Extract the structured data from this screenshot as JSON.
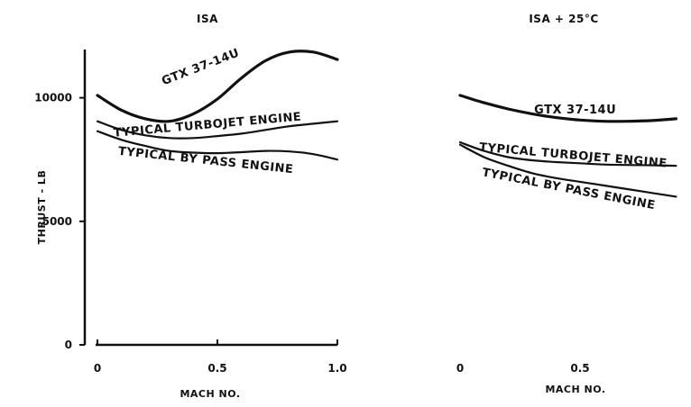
{
  "chart_data": [
    {
      "type": "line",
      "title": "ISA",
      "xlabel": "MACH NO.",
      "ylabel": "THRUST - LB",
      "xlim": [
        0,
        1.0
      ],
      "ylim": [
        0,
        12300
      ],
      "xticks": [
        "0",
        "0.5",
        "1.0"
      ],
      "yticks": [
        "0",
        "5000",
        "10000"
      ],
      "series": [
        {
          "name": "GTX 37-14U",
          "x": [
            0,
            0.1,
            0.2,
            0.3,
            0.4,
            0.5,
            0.6,
            0.7,
            0.8,
            0.9,
            1.0
          ],
          "values": [
            10100,
            9500,
            9150,
            9050,
            9350,
            9950,
            10800,
            11500,
            11850,
            11850,
            11550
          ]
        },
        {
          "name": "TYPICAL TURBOJET ENGINE",
          "x": [
            0,
            0.1,
            0.2,
            0.3,
            0.4,
            0.5,
            0.6,
            0.7,
            0.8,
            0.9,
            1.0
          ],
          "values": [
            9050,
            8700,
            8480,
            8370,
            8370,
            8450,
            8550,
            8700,
            8850,
            8950,
            9050
          ]
        },
        {
          "name": "TYPICAL BY PASS ENGINE",
          "x": [
            0,
            0.1,
            0.2,
            0.3,
            0.4,
            0.5,
            0.6,
            0.7,
            0.8,
            0.9,
            1.0
          ],
          "values": [
            8650,
            8300,
            8050,
            7850,
            7780,
            7760,
            7800,
            7850,
            7830,
            7720,
            7500
          ]
        }
      ]
    },
    {
      "type": "line",
      "title": "ISA + 25°C",
      "xlabel": "MACH NO.",
      "ylabel": "",
      "xlim": [
        0,
        1.0
      ],
      "ylim": [
        0,
        12300
      ],
      "xticks": [
        "0",
        "0.5"
      ],
      "yticks": [],
      "series": [
        {
          "name": "GTX 37-14U",
          "x": [
            0,
            0.1,
            0.2,
            0.3,
            0.4,
            0.5,
            0.6,
            0.7,
            0.8,
            0.9
          ],
          "values": [
            10100,
            9800,
            9550,
            9350,
            9200,
            9100,
            9050,
            9050,
            9080,
            9150
          ]
        },
        {
          "name": "TYPICAL TURBOJET ENGINE",
          "x": [
            0,
            0.1,
            0.2,
            0.3,
            0.4,
            0.5,
            0.6,
            0.7,
            0.8,
            0.9
          ],
          "values": [
            8200,
            7850,
            7600,
            7470,
            7400,
            7350,
            7300,
            7280,
            7270,
            7250
          ]
        },
        {
          "name": "TYPICAL BY PASS ENGINE",
          "x": [
            0,
            0.1,
            0.2,
            0.3,
            0.4,
            0.5,
            0.6,
            0.7,
            0.8,
            0.9
          ],
          "values": [
            8100,
            7600,
            7250,
            6950,
            6750,
            6600,
            6450,
            6300,
            6150,
            6000
          ]
        }
      ]
    }
  ]
}
